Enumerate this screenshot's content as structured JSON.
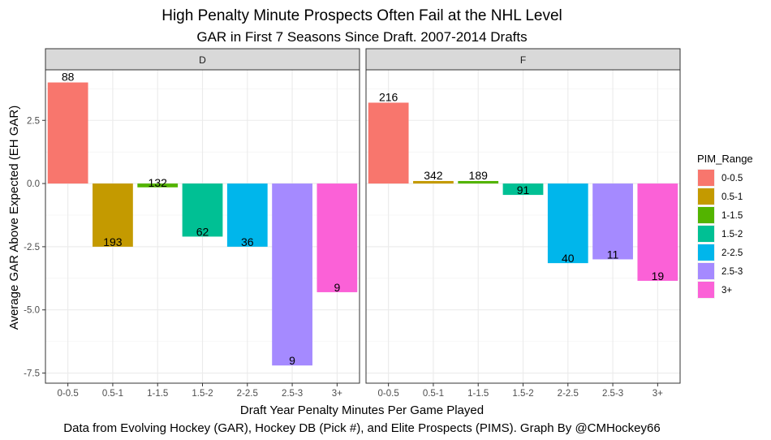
{
  "chart_data": {
    "type": "bar",
    "title": "High Penalty Minute Prospects Often Fail at the NHL Level",
    "subtitle": "GAR in First 7 Seasons Since Draft. 2007-2014 Drafts",
    "xlabel": "Draft Year Penalty Minutes Per Game Played",
    "ylabel": "Average GAR Above Expected (EH GAR)",
    "caption": "Data from Evolving Hockey (GAR), Hockey DB (Pick #), and Elite Prospects (PIMS). Graph By @CMHockey66",
    "categories": [
      "0-0.5",
      "0.5-1",
      "1-1.5",
      "1.5-2",
      "2-2.5",
      "2.5-3",
      "3+"
    ],
    "y_ticks": [
      -7.5,
      -5.0,
      -2.5,
      0.0,
      2.5
    ],
    "y_tick_labels": [
      "-7.5",
      "-5.0",
      "-2.5",
      "0.0",
      "2.5"
    ],
    "ylim": [
      -7.9,
      4.5
    ],
    "grid": true,
    "legend": {
      "title": "PIM_Range",
      "position": "right",
      "entries": [
        "0-0.5",
        "0.5-1",
        "1-1.5",
        "1.5-2",
        "2-2.5",
        "2.5-3",
        "3+"
      ]
    },
    "colors": [
      "#F8766D",
      "#C49A00",
      "#53B400",
      "#00C094",
      "#00B6EB",
      "#A58AFF",
      "#FB61D7"
    ],
    "panels": [
      {
        "label": "D",
        "values": [
          4.0,
          -2.5,
          -0.15,
          -2.1,
          -2.5,
          -7.2,
          -4.3
        ],
        "counts": [
          "88",
          "193",
          "132",
          "62",
          "36",
          "9",
          "9"
        ]
      },
      {
        "label": "F",
        "values": [
          3.2,
          0.1,
          0.1,
          -0.45,
          -3.15,
          -3.0,
          -3.85
        ],
        "counts": [
          "216",
          "342",
          "189",
          "91",
          "40",
          "11",
          "19"
        ]
      }
    ]
  }
}
